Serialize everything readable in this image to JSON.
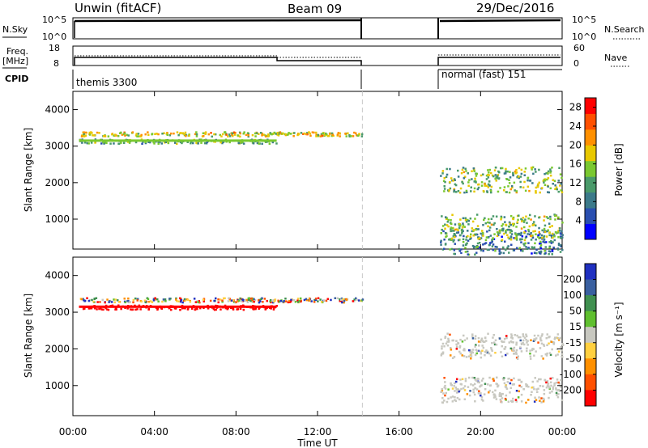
{
  "header": {
    "station": "Unwin (fitACF)",
    "beam": "Beam 09",
    "date": "29/Dec/2016"
  },
  "panels": {
    "nsky_label": "N.Sky",
    "nsearch_label": "N.Search",
    "freq_label_1": "Freq.",
    "freq_label_2": "[MHz]",
    "nave_label": "Nave",
    "cpid_label": "CPID",
    "cpid_1": "themis 3300",
    "cpid_2": "normal (fast) 151",
    "nsky_ticks": [
      "10^5",
      "10^0"
    ],
    "nsearch_ticks": [
      "10^5",
      "10^0"
    ],
    "freq_ticks": [
      "18",
      "8"
    ],
    "nave_ticks": [
      "60",
      "0"
    ]
  },
  "chart_data": [
    {
      "type": "heatmap",
      "name_hint": "power",
      "title": "",
      "xlabel": "Time UT",
      "ylabel": "Slant Range [km]",
      "x_ticks": [
        "00:00",
        "04:00",
        "08:00",
        "12:00",
        "16:00",
        "20:00",
        "00:00"
      ],
      "xlim_hours": [
        0,
        24
      ],
      "y_ticks": [
        1000,
        2000,
        3000,
        4000
      ],
      "ylim": [
        180,
        4500
      ],
      "colorbar": {
        "label": "Power [dB]",
        "ticks": [
          4,
          8,
          12,
          16,
          20,
          24,
          28
        ],
        "range": [
          0,
          30
        ],
        "colors": [
          "#0000ff",
          "#2a4fb0",
          "#3c7a8a",
          "#4a9a6a",
          "#7ac830",
          "#e8c800",
          "#ff9000",
          "#ff5000",
          "#ff0000"
        ]
      },
      "scatter_bands_km": [
        {
          "t0": 0.3,
          "t1": 10.0,
          "r": 3150,
          "value": 12
        },
        {
          "t0": 0.3,
          "t1": 14.2,
          "r": 3350,
          "value": 18
        },
        {
          "t0": 18.0,
          "t1": 24.0,
          "r": 400,
          "value": 8
        },
        {
          "t0": 18.0,
          "t1": 24.0,
          "r": 800,
          "value": 14
        },
        {
          "t0": 18.0,
          "t1": 24.0,
          "r": 2100,
          "value": 14
        }
      ],
      "data_gaps_hours": [
        [
          14.2,
          18.0
        ]
      ]
    },
    {
      "type": "heatmap",
      "name_hint": "velocity",
      "title": "",
      "xlabel": "Time UT",
      "ylabel": "Slant Range [km]",
      "x_ticks": [
        "00:00",
        "04:00",
        "08:00",
        "12:00",
        "16:00",
        "20:00",
        "00:00"
      ],
      "xlim_hours": [
        0,
        24
      ],
      "y_ticks": [
        1000,
        2000,
        3000,
        4000
      ],
      "ylim": [
        180,
        4500
      ],
      "colorbar": {
        "label": "Velocity [m s⁻¹]",
        "ticks": [
          200,
          100,
          50,
          15,
          -15,
          -50,
          -100,
          -200
        ],
        "colors": [
          "#2030c0",
          "#3a60a0",
          "#409050",
          "#60c030",
          "#c8c8c0",
          "#ffd040",
          "#ff9000",
          "#ff5000",
          "#ff0000"
        ]
      },
      "scatter_bands_km": [
        {
          "t0": 0.3,
          "t1": 10.0,
          "r": 3150,
          "value": -250
        },
        {
          "t0": 0.3,
          "t1": 14.2,
          "r": 3350,
          "value": 30
        },
        {
          "t0": 18.0,
          "t1": 24.0,
          "r": 900,
          "value": 0
        },
        {
          "t0": 18.0,
          "t1": 24.0,
          "r": 2100,
          "value": 0
        }
      ],
      "data_gaps_hours": [
        [
          14.2,
          18.0
        ]
      ]
    }
  ]
}
